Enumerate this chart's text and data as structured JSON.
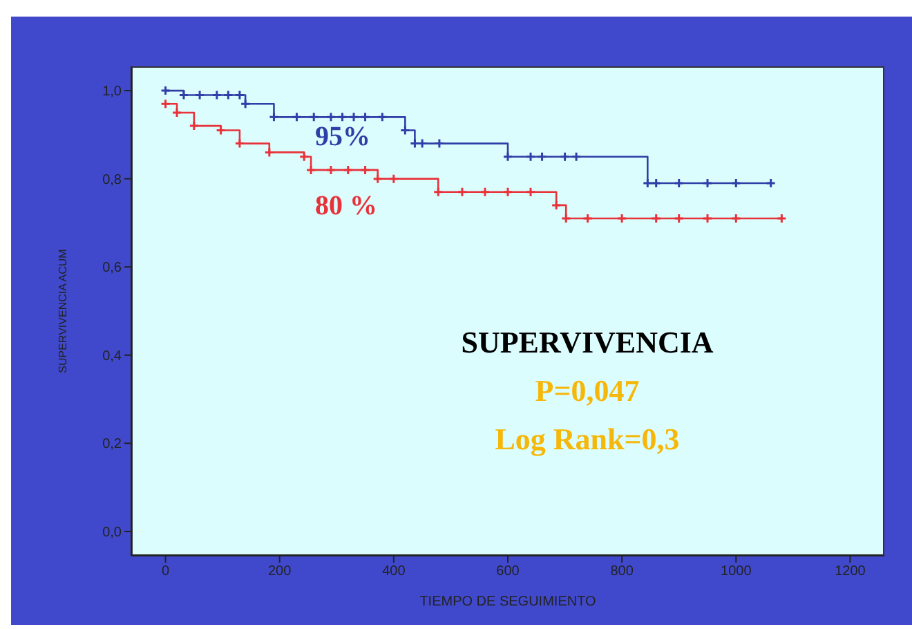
{
  "chart_data": {
    "type": "step",
    "xlabel": "TIEMPO DE SEGUIMIENTO",
    "ylabel": "SUPERVIVENCIA ACUM",
    "xlim": [
      -60,
      1260
    ],
    "xticks": [
      0,
      200,
      400,
      600,
      800,
      1000,
      1200
    ],
    "ylim": [
      -0.055,
      1.055
    ],
    "yticks": [
      {
        "value": 0,
        "label": "0,0"
      },
      {
        "value": 0.2,
        "label": "0,2"
      },
      {
        "value": 0.4,
        "label": "0,4"
      },
      {
        "value": 0.6,
        "label": "0,6"
      },
      {
        "value": 0.8,
        "label": "0,8"
      },
      {
        "value": 1,
        "label": "1,0"
      }
    ],
    "marker": "cross",
    "line_style": "solid",
    "series": [
      {
        "name": "95%",
        "color": "#2f3fa8",
        "x": [
          0,
          32,
          60,
          90,
          110,
          130,
          140,
          190,
          230,
          260,
          290,
          310,
          330,
          350,
          380,
          420,
          437,
          450,
          480,
          600,
          640,
          660,
          700,
          720,
          845,
          860,
          900,
          950,
          1000,
          1061
        ],
        "values": [
          1,
          0.99,
          0.99,
          0.99,
          0.99,
          0.99,
          0.97,
          0.94,
          0.94,
          0.94,
          0.94,
          0.94,
          0.94,
          0.94,
          0.94,
          0.91,
          0.88,
          0.88,
          0.88,
          0.85,
          0.85,
          0.85,
          0.85,
          0.85,
          0.79,
          0.79,
          0.79,
          0.79,
          0.79,
          0.79
        ]
      },
      {
        "name": "80 %",
        "color": "#e8323a",
        "x": [
          0,
          20,
          50,
          97,
          130,
          182,
          243,
          255,
          290,
          320,
          350,
          372,
          400,
          478,
          520,
          560,
          600,
          640,
          685,
          702,
          740,
          800,
          860,
          900,
          950,
          1000,
          1080
        ],
        "values": [
          0.97,
          0.95,
          0.92,
          0.91,
          0.88,
          0.86,
          0.85,
          0.82,
          0.82,
          0.82,
          0.82,
          0.8,
          0.8,
          0.77,
          0.77,
          0.77,
          0.77,
          0.77,
          0.74,
          0.71,
          0.71,
          0.71,
          0.71,
          0.71,
          0.71,
          0.71,
          0.71
        ]
      }
    ],
    "annotations": [
      "SUPERVIVENCIA",
      "P=0,047",
      "Log Rank=0,3"
    ]
  }
}
